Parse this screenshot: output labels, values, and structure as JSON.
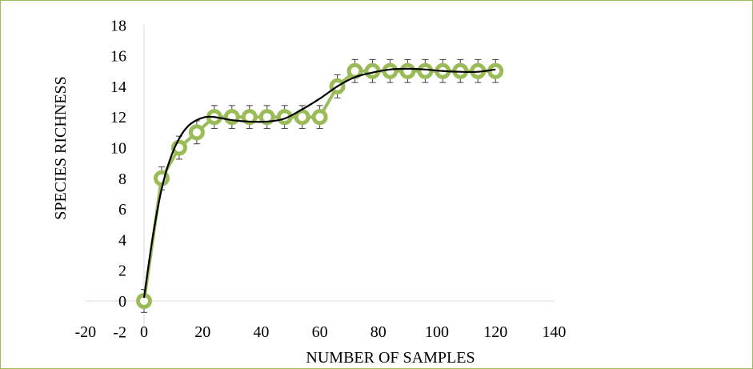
{
  "chart_data": {
    "type": "scatter",
    "title": "",
    "xlabel": "NUMBER OF SAMPLES",
    "ylabel": "SPECIES RICHNESS",
    "xlim": [
      -20,
      140
    ],
    "ylim": [
      -2,
      18
    ],
    "xticks": [
      -20,
      0,
      20,
      40,
      60,
      80,
      100,
      120,
      140
    ],
    "yticks": [
      -2,
      0,
      2,
      4,
      6,
      8,
      10,
      12,
      14,
      16,
      18
    ],
    "grid": false,
    "legend": "none",
    "series": [
      {
        "style": "markers-with-line-and-error-bars",
        "color": "#9bbb59",
        "x": [
          0,
          6,
          12,
          18,
          24,
          30,
          36,
          42,
          48,
          54,
          60,
          66,
          72,
          78,
          84,
          90,
          96,
          102,
          108,
          114,
          120
        ],
        "y": [
          0,
          8,
          10,
          11,
          12,
          12,
          12,
          12,
          12,
          12,
          12,
          14,
          15,
          15,
          15,
          15,
          15,
          15,
          15,
          15,
          15
        ],
        "error": 0.75
      },
      {
        "style": "trendline",
        "color": "#000000",
        "x": [
          0,
          3,
          6,
          9,
          12,
          15,
          18,
          21,
          24,
          30,
          36,
          42,
          48,
          54,
          60,
          66,
          72,
          78,
          84,
          90,
          96,
          102,
          108,
          114,
          120
        ],
        "y": [
          0.2,
          4.2,
          7.3,
          9.3,
          10.6,
          11.4,
          11.8,
          12.0,
          12.0,
          11.8,
          11.7,
          11.7,
          11.9,
          12.5,
          13.2,
          14.0,
          14.6,
          14.9,
          15.1,
          15.15,
          15.1,
          15.0,
          14.95,
          14.95,
          15.1
        ]
      }
    ]
  }
}
